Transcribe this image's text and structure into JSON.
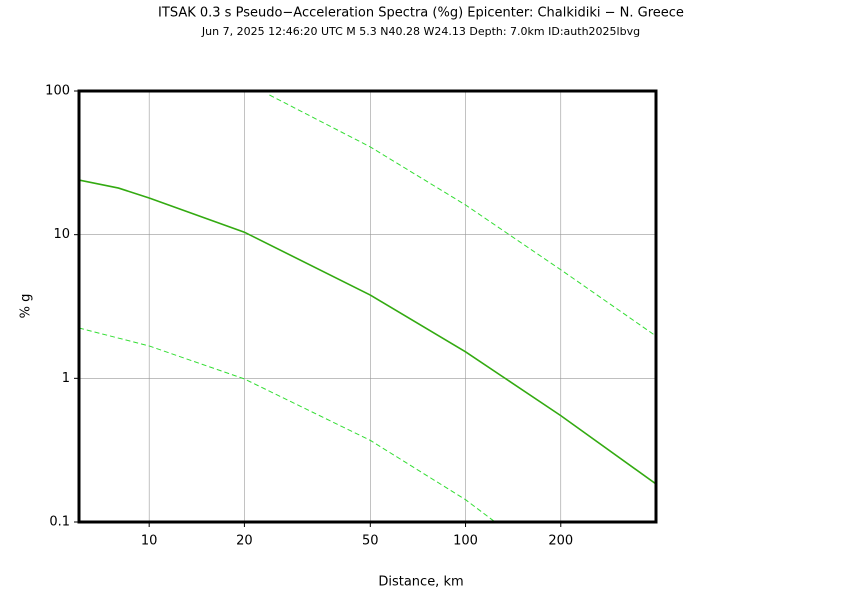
{
  "chart_data": {
    "type": "line",
    "title": "ITSAK 0.3 s Pseudo−Acceleration Spectra (%g) Epicenter: Chalkidiki − N. Greece",
    "subtitle": "Jun  7, 2025 12:46:20 UTC   M 5.3   N40.28 W24.13   Depth: 7.0km   ID:auth2025lbvg",
    "x_label": "Distance, km",
    "y_label": "% g",
    "xscale": "log",
    "yscale": "log",
    "grid": true,
    "xlim": [
      6,
      400
    ],
    "ylim": [
      0.1,
      100
    ],
    "xticks": [
      10,
      20,
      50,
      100,
      200
    ],
    "yticks": [
      0.1,
      1,
      10,
      100
    ],
    "series": [
      {
        "color": "#33aa11",
        "style": "solid",
        "x": [
          6,
          8,
          10,
          20,
          50,
          100,
          200,
          400
        ],
        "values": [
          24,
          21.1,
          18,
          10.4,
          3.8,
          1.53,
          0.55,
          0.184
        ]
      },
      {
        "color": "#33dd33",
        "style": "dashed",
        "x": [
          24,
          50,
          100,
          200,
          400
        ],
        "values": [
          93.8,
          40.8,
          16.1,
          5.7,
          1.97
        ]
      },
      {
        "color": "#33dd33",
        "style": "dashed",
        "x": [
          6,
          10,
          20,
          50,
          100,
          124
        ],
        "values": [
          2.24,
          1.68,
          0.99,
          0.37,
          0.143,
          0.1
        ]
      }
    ]
  }
}
